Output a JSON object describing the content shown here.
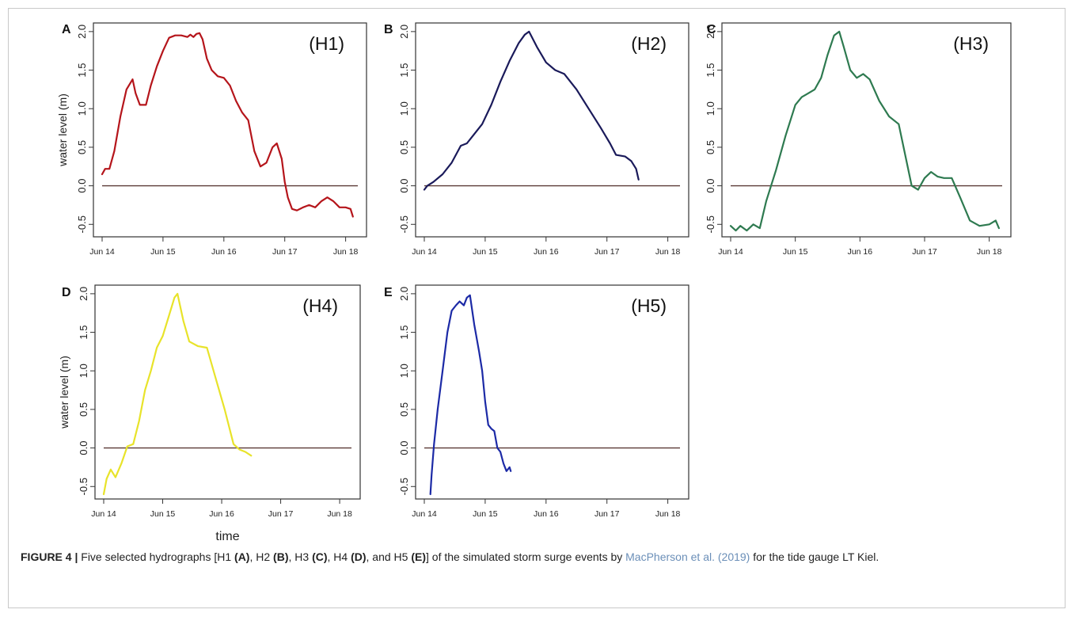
{
  "figure": {
    "caption": {
      "label": "FIGURE 4 |",
      "segments": [
        {
          "text": " Five selected hydrographs [H1 ",
          "style": "normal"
        },
        {
          "text": "(A)",
          "style": "bold"
        },
        {
          "text": ", H2 ",
          "style": "normal"
        },
        {
          "text": "(B)",
          "style": "bold"
        },
        {
          "text": ", H3 ",
          "style": "normal"
        },
        {
          "text": "(C)",
          "style": "bold"
        },
        {
          "text": ", H4 ",
          "style": "normal"
        },
        {
          "text": "(D)",
          "style": "bold"
        },
        {
          "text": ", and H5 ",
          "style": "normal"
        },
        {
          "text": "(E)",
          "style": "bold"
        },
        {
          "text": "] of the simulated storm surge events by ",
          "style": "normal"
        },
        {
          "text": "MacPherson et al. (2019)",
          "style": "link"
        },
        {
          "text": " for the tide gauge LT Kiel.",
          "style": "normal"
        }
      ]
    }
  },
  "chart_data": [
    {
      "type": "line",
      "panel": "A",
      "inset": "(H1)",
      "color": "#b5151b",
      "xlabel": "",
      "ylabel": "water level (m)",
      "xticks": [
        "Jun 14",
        "Jun 15",
        "Jun 16",
        "Jun 17",
        "Jun 18"
      ],
      "yticks": [
        "-0.5",
        "0.0",
        "0.5",
        "1.0",
        "1.5",
        "2.0"
      ],
      "xlim": [
        14,
        18.2
      ],
      "ylim": [
        -0.6,
        2.05
      ],
      "reference_line": 0.0,
      "x": [
        14.0,
        14.05,
        14.12,
        14.2,
        14.3,
        14.4,
        14.5,
        14.55,
        14.62,
        14.72,
        14.8,
        14.9,
        15.0,
        15.1,
        15.2,
        15.3,
        15.4,
        15.45,
        15.5,
        15.55,
        15.6,
        15.65,
        15.72,
        15.8,
        15.9,
        16.0,
        16.1,
        16.2,
        16.3,
        16.4,
        16.5,
        16.6,
        16.7,
        16.8,
        16.87,
        16.95,
        17.0,
        17.05,
        17.12,
        17.2,
        17.3,
        17.4,
        17.5,
        17.6,
        17.7,
        17.8,
        17.9,
        18.0,
        18.08,
        18.12
      ],
      "y": [
        0.15,
        0.22,
        0.22,
        0.45,
        0.9,
        1.25,
        1.38,
        1.2,
        1.05,
        1.05,
        1.3,
        1.55,
        1.75,
        1.92,
        1.95,
        1.95,
        1.93,
        1.96,
        1.93,
        1.97,
        1.98,
        1.9,
        1.65,
        1.5,
        1.42,
        1.4,
        1.3,
        1.1,
        0.95,
        0.85,
        0.45,
        0.25,
        0.3,
        0.5,
        0.55,
        0.35,
        0.05,
        -0.15,
        -0.3,
        -0.32,
        -0.28,
        -0.25,
        -0.28,
        -0.2,
        -0.15,
        -0.2,
        -0.28,
        -0.28,
        -0.3,
        -0.4
      ]
    },
    {
      "type": "line",
      "panel": "B",
      "inset": "(H2)",
      "color": "#1a1a5a",
      "xlabel": "",
      "ylabel": "",
      "xticks": [
        "Jun 14",
        "Jun 15",
        "Jun 16",
        "Jun 17",
        "Jun 18"
      ],
      "yticks": [
        "-0.5",
        "0.0",
        "0.5",
        "1.0",
        "1.5",
        "2.0"
      ],
      "xlim": [
        14,
        18.2
      ],
      "ylim": [
        -0.6,
        2.05
      ],
      "reference_line": 0.0,
      "x": [
        14.0,
        14.05,
        14.15,
        14.3,
        14.45,
        14.6,
        14.7,
        14.8,
        14.95,
        15.1,
        15.25,
        15.4,
        15.55,
        15.65,
        15.72,
        15.85,
        16.0,
        16.15,
        16.3,
        16.5,
        16.7,
        16.9,
        17.05,
        17.15,
        17.3,
        17.4,
        17.48,
        17.52
      ],
      "y": [
        -0.05,
        0.0,
        0.05,
        0.15,
        0.3,
        0.52,
        0.55,
        0.65,
        0.8,
        1.05,
        1.35,
        1.62,
        1.85,
        1.96,
        2.0,
        1.8,
        1.6,
        1.5,
        1.45,
        1.25,
        1.0,
        0.75,
        0.55,
        0.4,
        0.38,
        0.32,
        0.22,
        0.08
      ]
    },
    {
      "type": "line",
      "panel": "C",
      "inset": "(H3)",
      "color": "#2e7a50",
      "xlabel": "",
      "ylabel": "",
      "xticks": [
        "Jun 14",
        "Jun 15",
        "Jun 16",
        "Jun 17",
        "Jun 18"
      ],
      "yticks": [
        "-0.5",
        "0.0",
        "0.5",
        "1.0",
        "1.5",
        "2.0"
      ],
      "xlim": [
        14,
        18.2
      ],
      "ylim": [
        -0.6,
        2.05
      ],
      "reference_line": 0.0,
      "x": [
        14.0,
        14.08,
        14.15,
        14.25,
        14.35,
        14.45,
        14.55,
        14.7,
        14.85,
        15.0,
        15.1,
        15.2,
        15.3,
        15.4,
        15.5,
        15.6,
        15.68,
        15.75,
        15.85,
        15.95,
        16.05,
        16.15,
        16.3,
        16.45,
        16.6,
        16.7,
        16.8,
        16.9,
        17.0,
        17.1,
        17.2,
        17.3,
        17.42,
        17.55,
        17.7,
        17.85,
        18.0,
        18.1,
        18.15
      ],
      "y": [
        -0.52,
        -0.58,
        -0.52,
        -0.58,
        -0.5,
        -0.55,
        -0.2,
        0.2,
        0.65,
        1.05,
        1.15,
        1.2,
        1.25,
        1.4,
        1.7,
        1.95,
        2.0,
        1.8,
        1.5,
        1.4,
        1.45,
        1.38,
        1.1,
        0.9,
        0.8,
        0.4,
        0.0,
        -0.05,
        0.1,
        0.18,
        0.12,
        0.1,
        0.1,
        -0.15,
        -0.45,
        -0.52,
        -0.5,
        -0.45,
        -0.55
      ]
    },
    {
      "type": "line",
      "panel": "D",
      "inset": "(H4)",
      "color": "#e8e32a",
      "xlabel": "time",
      "ylabel": "water level (m)",
      "xticks": [
        "Jun 14",
        "Jun 15",
        "Jun 16",
        "Jun 17",
        "Jun 18"
      ],
      "yticks": [
        "-0.5",
        "0.0",
        "0.5",
        "1.0",
        "1.5",
        "2.0"
      ],
      "xlim": [
        14,
        18.2
      ],
      "ylim": [
        -0.6,
        2.05
      ],
      "reference_line": 0.0,
      "x": [
        14.0,
        14.05,
        14.12,
        14.2,
        14.3,
        14.4,
        14.5,
        14.6,
        14.7,
        14.8,
        14.9,
        15.0,
        15.1,
        15.2,
        15.25,
        15.35,
        15.45,
        15.6,
        15.75,
        15.9,
        16.05,
        16.2,
        16.3,
        16.4,
        16.5
      ],
      "y": [
        -0.6,
        -0.4,
        -0.28,
        -0.38,
        -0.2,
        0.02,
        0.05,
        0.35,
        0.75,
        1.0,
        1.3,
        1.45,
        1.7,
        1.95,
        2.0,
        1.65,
        1.38,
        1.32,
        1.3,
        0.9,
        0.5,
        0.05,
        -0.02,
        -0.05,
        -0.1
      ]
    },
    {
      "type": "line",
      "panel": "E",
      "inset": "(H5)",
      "color": "#1c2aa6",
      "xlabel": "",
      "ylabel": "",
      "xticks": [
        "Jun 14",
        "Jun 15",
        "Jun 16",
        "Jun 17",
        "Jun 18"
      ],
      "yticks": [
        "-0.5",
        "0.0",
        "0.5",
        "1.0",
        "1.5",
        "2.0"
      ],
      "xlim": [
        14,
        18.2
      ],
      "ylim": [
        -0.6,
        2.05
      ],
      "reference_line": 0.0,
      "x": [
        14.1,
        14.12,
        14.16,
        14.22,
        14.3,
        14.38,
        14.45,
        14.52,
        14.58,
        14.65,
        14.7,
        14.75,
        14.82,
        14.9,
        14.95,
        15.0,
        15.05,
        15.1,
        15.15,
        15.2,
        15.25,
        15.3,
        15.35,
        15.4,
        15.42
      ],
      "y": [
        -0.6,
        -0.35,
        0.05,
        0.5,
        1.0,
        1.5,
        1.78,
        1.85,
        1.9,
        1.85,
        1.95,
        1.98,
        1.6,
        1.25,
        1.0,
        0.6,
        0.3,
        0.25,
        0.22,
        0.0,
        -0.05,
        -0.2,
        -0.3,
        -0.25,
        -0.3
      ]
    }
  ]
}
